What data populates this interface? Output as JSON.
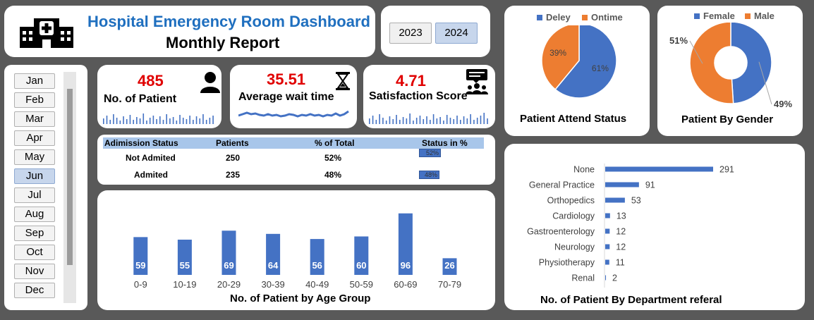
{
  "header": {
    "title": "Hospital Emergency Room Dashboard",
    "subtitle": "Monthly Report"
  },
  "years": {
    "items": [
      "2023",
      "2024"
    ],
    "selected": "2024"
  },
  "months": {
    "items": [
      "Jan",
      "Feb",
      "Mar",
      "Apr",
      "May",
      "Jun",
      "Jul",
      "Aug",
      "Sep",
      "Oct",
      "Nov",
      "Dec"
    ],
    "selected": "Jun"
  },
  "kpis": {
    "patients": {
      "value": "485",
      "label": "No. of Patient",
      "icon": "person-icon"
    },
    "wait": {
      "value": "35.51",
      "label": "Average wait time",
      "icon": "hourglass-icon"
    },
    "satisfaction": {
      "value": "4.71",
      "label": "Satisfaction Score",
      "icon": "group-chat-icon"
    }
  },
  "admission": {
    "headers": [
      "Adimission Status",
      "Patients",
      "% of Total",
      "Status in %"
    ],
    "rows": [
      {
        "status": "Not Admited",
        "patients": "250",
        "pct": "52%",
        "fraction": 0.52
      },
      {
        "status": "Admited",
        "patients": "235",
        "pct": "48%",
        "fraction": 0.48
      }
    ]
  },
  "colors": {
    "blue": "#4472c4",
    "orange": "#ed7d31",
    "red": "#e00000",
    "title_blue": "#1f6fbf"
  },
  "chart_data": [
    {
      "type": "bar",
      "title": "No. of Patient by Age Group",
      "categories": [
        "0-9",
        "10-19",
        "20-29",
        "30-39",
        "40-49",
        "50-59",
        "60-69",
        "70-79"
      ],
      "values": [
        59,
        55,
        69,
        64,
        56,
        60,
        96,
        26
      ],
      "ylim": [
        0,
        110
      ]
    },
    {
      "type": "pie",
      "title": "Patient Attend Status",
      "labels": [
        "Deley",
        "Ontime"
      ],
      "values": [
        61,
        39
      ],
      "data_labels": [
        "61%",
        "39%"
      ],
      "legend": "top"
    },
    {
      "type": "pie",
      "title": "Patient By Gender",
      "labels": [
        "Female",
        "Male"
      ],
      "values": [
        49,
        51
      ],
      "data_labels": [
        "49%",
        "51%"
      ],
      "legend": "top"
    },
    {
      "type": "bar",
      "orientation": "horizontal",
      "title": "No. of Patient By Department referal",
      "categories": [
        "None",
        "General Practice",
        "Orthopedics",
        "Cardiology",
        "Gastroenterology",
        "Neurology",
        "Physiotherapy",
        "Renal"
      ],
      "values": [
        291,
        91,
        53,
        13,
        12,
        12,
        11,
        2
      ]
    }
  ]
}
